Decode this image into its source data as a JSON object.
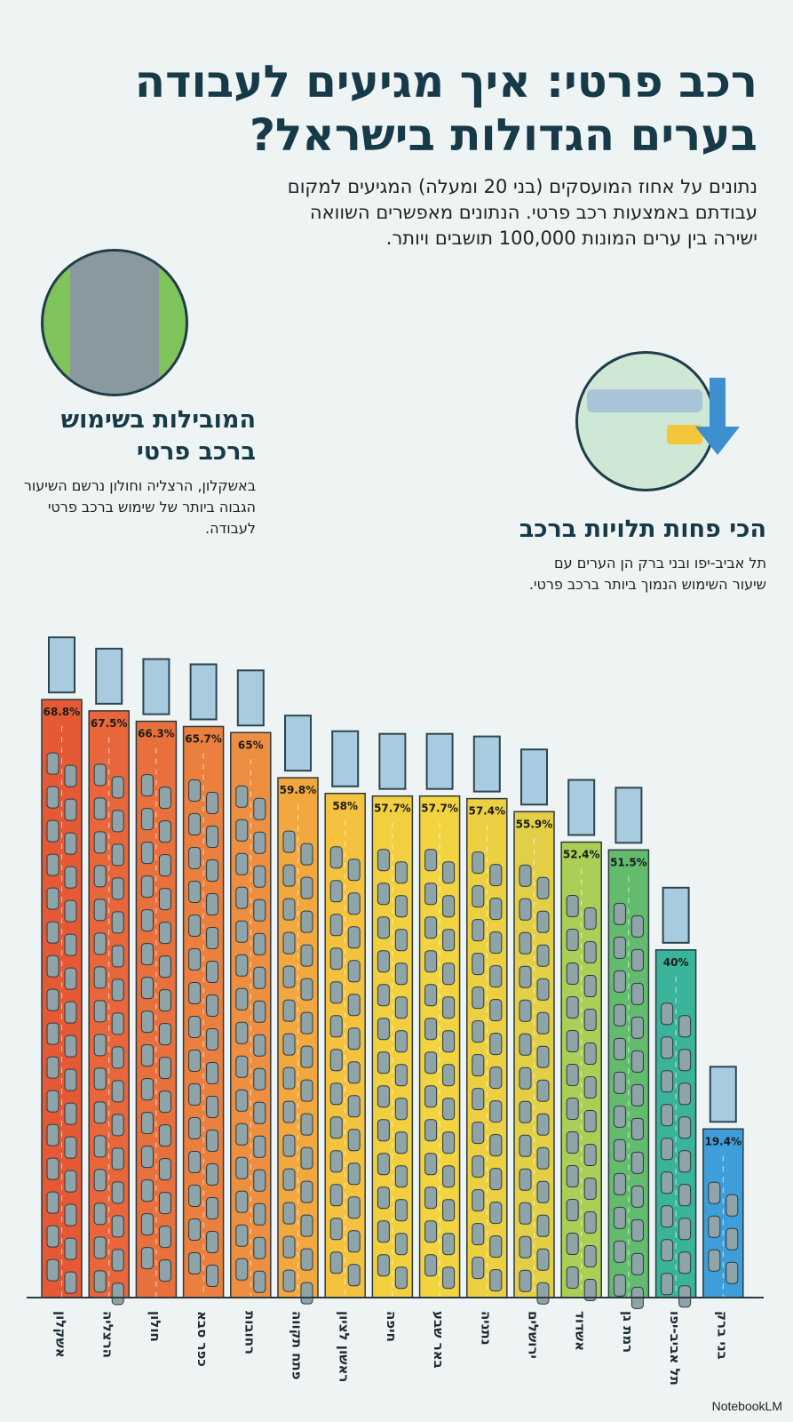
{
  "header": {
    "title": "רכב פרטי: איך מגיעים לעבודה בערים הגדולות בישראל?",
    "subtitle": "נתונים על אחוז המועסקים (בני 20 ומעלה) המגיעים למקום עבודתם באמצעות רכב פרטי. הנתונים מאפשרים השוואה ישירה בין ערים המונות 100,000 תושבים ויותר."
  },
  "callouts": {
    "top": {
      "heading": "המובילות בשימוש ברכב פרטי",
      "body": "באשקלון, הרצליה וחולון נרשם השיעור הגבוה ביותר של שימוש ברכב פרטי לעבודה."
    },
    "bottom": {
      "heading": "הכי פחות תלויות ברכב",
      "body": "תל אביב-יפו ובני ברק הן הערים עם שיעור השימוש הנמוך ביותר ברכב פרטי."
    }
  },
  "chart_data": {
    "type": "bar",
    "title": "רכב פרטי: איך מגיעים לעבודה בערים הגדולות בישראל?",
    "xlabel": "",
    "ylabel": "",
    "ylim": [
      0,
      70
    ],
    "grid": false,
    "categories": [
      "אשקלון",
      "הרצליה",
      "חולון",
      "כפר סבא",
      "רחובות",
      "פתח תקווה",
      "ראשון לציון",
      "חיפה",
      "באר שבע",
      "נתניה",
      "ירושלים",
      "אשדוד",
      "רמת גן",
      "תל אביב-יפו",
      "בני ברק"
    ],
    "values": [
      68.8,
      67.5,
      66.3,
      65.7,
      65,
      59.8,
      58,
      57.7,
      57.7,
      57.4,
      55.9,
      52.4,
      51.5,
      40,
      19.4
    ],
    "labels": [
      "68.8%",
      "67.5%",
      "66.3%",
      "65.7%",
      "65%",
      "59.8%",
      "58%",
      "57.7%",
      "57.7%",
      "57.4%",
      "55.9%",
      "52.4%",
      "51.5%",
      "40%",
      "19.4%"
    ],
    "colors": [
      "#e55a35",
      "#e8663a",
      "#e8703c",
      "#eb7f3e",
      "#ee8e40",
      "#f2a73f",
      "#f4c23e",
      "#f2cf3f",
      "#f2d441",
      "#ecd042",
      "#e2cf45",
      "#a9cf56",
      "#63bb6d",
      "#3ab39b",
      "#3d9ed9"
    ]
  },
  "footer": {
    "credit": "NotebookLM"
  }
}
